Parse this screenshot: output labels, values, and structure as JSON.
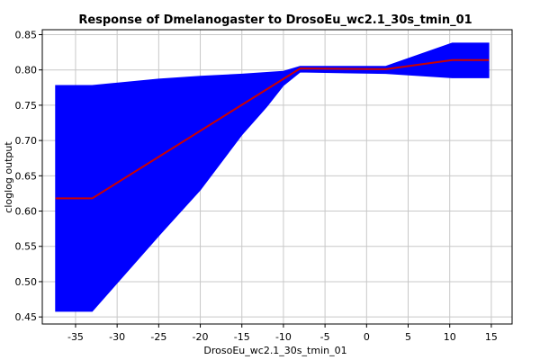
{
  "chart_data": {
    "type": "line",
    "title": "Response of Dmelanogaster to DrosoEu_wc2.1_30s_tmin_01",
    "xlabel": "DrosoEu_wc2.1_30s_tmin_01",
    "ylabel": "cloglog output",
    "xlim": [
      -39,
      17.5
    ],
    "ylim": [
      0.44,
      0.857
    ],
    "xticks": [
      -35,
      -30,
      -25,
      -20,
      -15,
      -10,
      -5,
      0,
      5,
      10,
      15
    ],
    "xtick_labels": [
      "-35",
      "-30",
      "-25",
      "-20",
      "-15",
      "-10",
      "-5",
      "0",
      "5",
      "10",
      "15"
    ],
    "yticks": [
      0.45,
      0.5,
      0.55,
      0.6,
      0.65,
      0.7,
      0.75,
      0.8,
      0.85
    ],
    "ytick_labels": [
      "0.45",
      "0.50",
      "0.55",
      "0.60",
      "0.65",
      "0.70",
      "0.75",
      "0.80",
      "0.85"
    ],
    "grid": true,
    "series": [
      {
        "role": "mean",
        "color": "#cc0000",
        "x": [
          -37.4,
          -33.0,
          -8.0,
          2.3,
          10.3,
          14.7
        ],
        "y": [
          0.618,
          0.618,
          0.802,
          0.801,
          0.814,
          0.814
        ]
      },
      {
        "role": "band-upper",
        "color": "#0000ff",
        "x": [
          -37.4,
          -33.0,
          -25.0,
          -20.0,
          -15.0,
          -10.0,
          -8.0,
          2.3,
          10.3,
          14.7
        ],
        "y": [
          0.778,
          0.778,
          0.787,
          0.791,
          0.794,
          0.798,
          0.805,
          0.805,
          0.838,
          0.838
        ]
      },
      {
        "role": "band-lower",
        "color": "#0000ff",
        "x": [
          -37.4,
          -33.0,
          -25.0,
          -20.0,
          -15.0,
          -12.0,
          -10.0,
          -8.0,
          2.3,
          10.3,
          14.7
        ],
        "y": [
          0.458,
          0.458,
          0.565,
          0.63,
          0.708,
          0.748,
          0.778,
          0.797,
          0.795,
          0.789,
          0.789
        ]
      }
    ]
  }
}
